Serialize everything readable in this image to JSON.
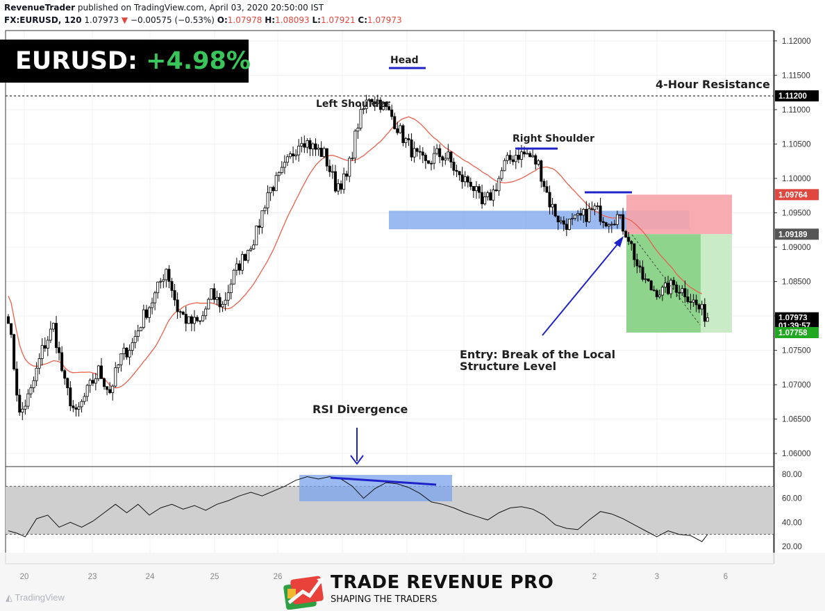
{
  "header": {
    "author": "RevenueTrader",
    "published": "published on TradingView.com, April 03, 2020 20:50:00 IST",
    "symbol": "FX:EURUSD, 120",
    "last": "1.07973",
    "change": "−0.00575 (−0.53%)",
    "open_label": "O:",
    "open": "1.07978",
    "high_label": "H:",
    "high": "1.08093",
    "low_label": "L:",
    "low": "1.07921",
    "close_label": "C:",
    "close": "1.07973"
  },
  "badge": {
    "pair": "EURUSD:",
    "gain": "+4.98%"
  },
  "annotations": {
    "head": "Head",
    "left_shoulder": "Left Shoulder",
    "right_shoulder": "Right Shoulder",
    "resistance": "4-Hour Resistance",
    "entry_line1": "Entry: Break of the Local",
    "entry_line2": "Structure Level",
    "rsi_divergence": "RSI Divergence"
  },
  "logo": {
    "title": "TRADE REVENUE PRO",
    "subtitle": "SHAPING THE TRADERS"
  },
  "watermark": "TradingView",
  "colors": {
    "up_candle": "#ffffff",
    "down_candle": "#000000",
    "ma": "#e8604c",
    "support_zone": "#7aa3ee",
    "stop_zone": "#f6a3a9",
    "target_zone": "#8fd48c",
    "annotation_blue": "#1e22c8",
    "price_red": "#e0483f",
    "price_green": "#21a821"
  },
  "chart_data": {
    "type": "candlestick",
    "price_axis": {
      "ylim": [
        1.0585,
        1.1215
      ],
      "ticks": [
        "1.12000",
        "1.11500",
        "1.11000",
        "1.10500",
        "1.10000",
        "1.09500",
        "1.09000",
        "1.08500",
        "1.08000",
        "1.07500",
        "1.07000",
        "1.06500",
        "1.06000"
      ],
      "tick_values": [
        1.12,
        1.115,
        1.11,
        1.105,
        1.1,
        1.095,
        1.09,
        1.085,
        1.08,
        1.075,
        1.07,
        1.065,
        1.06
      ]
    },
    "x_axis": {
      "ticks": [
        "20",
        "23",
        "24",
        "25",
        "26",
        "2",
        "3",
        "6"
      ]
    },
    "price_labels": [
      {
        "text": "1.11200",
        "value": 1.112,
        "color": "#000000"
      },
      {
        "text": "1.09764",
        "value": 1.09764,
        "color": "#e0483f"
      },
      {
        "text": "1.09189",
        "value": 1.09189,
        "color": "#555555"
      },
      {
        "text": "1.07973",
        "value": 1.07973,
        "color": "#000000"
      },
      {
        "text": "01:39:57",
        "value": 1.0786,
        "color": "#000000"
      },
      {
        "text": "1.07758",
        "value": 1.07758,
        "color": "#21a821"
      }
    ],
    "resistance_level": 1.112,
    "support_zone": [
      1.0926,
      1.0953
    ],
    "trade": {
      "stop": 1.09764,
      "entry": 1.09189,
      "target": 1.07758
    },
    "waypoints": [
      [
        0,
        1.08
      ],
      [
        4,
        1.0655
      ],
      [
        8,
        1.069
      ],
      [
        12,
        1.075
      ],
      [
        16,
        1.0785
      ],
      [
        20,
        1.07
      ],
      [
        24,
        1.0655
      ],
      [
        28,
        1.069
      ],
      [
        32,
        1.072
      ],
      [
        36,
        1.069
      ],
      [
        40,
        1.074
      ],
      [
        44,
        1.076
      ],
      [
        48,
        1.08
      ],
      [
        52,
        1.083
      ],
      [
        56,
        1.087
      ],
      [
        60,
        1.081
      ],
      [
        64,
        1.079
      ],
      [
        68,
        1.079
      ],
      [
        72,
        1.083
      ],
      [
        76,
        1.0815
      ],
      [
        80,
        1.086
      ],
      [
        84,
        1.089
      ],
      [
        88,
        1.092
      ],
      [
        92,
        1.098
      ],
      [
        96,
        1.1
      ],
      [
        100,
        1.103
      ],
      [
        104,
        1.106
      ],
      [
        108,
        1.1045
      ],
      [
        112,
        1.1035
      ],
      [
        116,
        1.099
      ],
      [
        120,
        1.1
      ],
      [
        124,
        1.108
      ],
      [
        128,
        1.112
      ],
      [
        132,
        1.111
      ],
      [
        136,
        1.109
      ],
      [
        140,
        1.106
      ],
      [
        144,
        1.1035
      ],
      [
        148,
        1.102
      ],
      [
        152,
        1.1035
      ],
      [
        156,
        1.103
      ],
      [
        160,
        1.1
      ],
      [
        164,
        1.0995
      ],
      [
        168,
        1.096
      ],
      [
        172,
        1.098
      ],
      [
        176,
        1.102
      ],
      [
        180,
        1.1035
      ],
      [
        184,
        1.1035
      ],
      [
        188,
        1.102
      ],
      [
        192,
        1.0965
      ],
      [
        196,
        1.0935
      ],
      [
        200,
        1.0935
      ],
      [
        204,
        1.0945
      ],
      [
        208,
        1.0955
      ],
      [
        212,
        1.094
      ],
      [
        216,
        1.0945
      ],
      [
        220,
        1.0915
      ],
      [
        224,
        1.086
      ],
      [
        228,
        1.084
      ],
      [
        232,
        1.0835
      ],
      [
        236,
        1.0845
      ],
      [
        240,
        1.0835
      ],
      [
        244,
        1.0815
      ],
      [
        248,
        1.0797
      ]
    ],
    "rsi": {
      "levels": [
        "80.00",
        "60.00",
        "40.00",
        "20.00"
      ],
      "level_values": [
        80,
        60,
        40,
        20
      ],
      "band": [
        30,
        70
      ],
      "points": [
        [
          0,
          33
        ],
        [
          3,
          31
        ],
        [
          6,
          28
        ],
        [
          10,
          43
        ],
        [
          14,
          46
        ],
        [
          18,
          36
        ],
        [
          22,
          40
        ],
        [
          26,
          36
        ],
        [
          30,
          41
        ],
        [
          34,
          48
        ],
        [
          38,
          55
        ],
        [
          42,
          48
        ],
        [
          46,
          55
        ],
        [
          50,
          46
        ],
        [
          54,
          52
        ],
        [
          58,
          55
        ],
        [
          62,
          51
        ],
        [
          66,
          54
        ],
        [
          70,
          50
        ],
        [
          74,
          55
        ],
        [
          78,
          58
        ],
        [
          82,
          62
        ],
        [
          86,
          65
        ],
        [
          90,
          62
        ],
        [
          94,
          66
        ],
        [
          98,
          70
        ],
        [
          102,
          75
        ],
        [
          106,
          78
        ],
        [
          110,
          76
        ],
        [
          114,
          78
        ],
        [
          118,
          76
        ],
        [
          122,
          70
        ],
        [
          126,
          60
        ],
        [
          130,
          68
        ],
        [
          134,
          73
        ],
        [
          138,
          72
        ],
        [
          142,
          69
        ],
        [
          146,
          64
        ],
        [
          150,
          57
        ],
        [
          154,
          55
        ],
        [
          158,
          52
        ],
        [
          162,
          48
        ],
        [
          166,
          45
        ],
        [
          170,
          42
        ],
        [
          174,
          48
        ],
        [
          178,
          52
        ],
        [
          182,
          53
        ],
        [
          186,
          51
        ],
        [
          190,
          46
        ],
        [
          194,
          38
        ],
        [
          198,
          35
        ],
        [
          202,
          34
        ],
        [
          206,
          42
        ],
        [
          210,
          49
        ],
        [
          214,
          47
        ],
        [
          218,
          43
        ],
        [
          222,
          38
        ],
        [
          226,
          33
        ],
        [
          230,
          28
        ],
        [
          234,
          33
        ],
        [
          238,
          30
        ],
        [
          242,
          29
        ],
        [
          246,
          24
        ],
        [
          248,
          30
        ]
      ]
    }
  }
}
